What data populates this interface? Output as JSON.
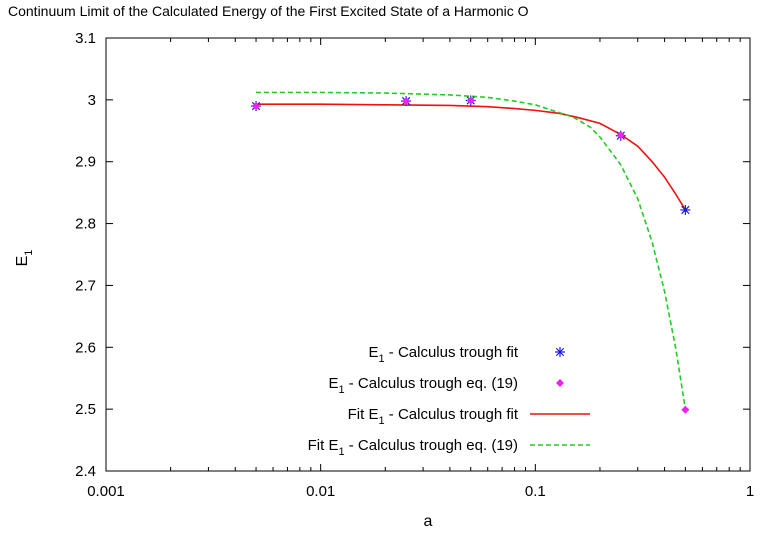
{
  "chart_data": {
    "type": "scatter",
    "title": "Continuum Limit of the Calculated Energy of the First Excited State of a Harmonic O",
    "xlabel": "a",
    "ylabel_main": "E",
    "ylabel_sub": "1",
    "x_scale": "log",
    "xlim": [
      0.001,
      1
    ],
    "ylim": [
      2.4,
      3.1
    ],
    "x_ticks": [
      0.001,
      0.01,
      0.1,
      1
    ],
    "x_tick_labels": [
      "0.001",
      "0.01",
      "0.1",
      "1"
    ],
    "y_ticks": [
      2.4,
      2.5,
      2.6,
      2.7,
      2.8,
      2.9,
      3.0,
      3.1
    ],
    "y_tick_labels": [
      "2.4",
      "2.5",
      "2.6",
      "2.7",
      "2.8",
      "2.9",
      "3",
      "3.1"
    ],
    "grid": false,
    "legend_position": "bottom-center",
    "series": [
      {
        "kind": "points",
        "marker": "asterisk",
        "color": "#1a1ae6",
        "label_prefix": "E",
        "label_sub": "1",
        "label_suffix": " - Calculus trough fit",
        "x": [
          0.005,
          0.025,
          0.05,
          0.25,
          0.5
        ],
        "y": [
          2.99,
          2.998,
          2.999,
          2.942,
          2.822
        ]
      },
      {
        "kind": "points",
        "marker": "diamond",
        "color": "#ee22ee",
        "label_prefix": "E",
        "label_sub": "1",
        "label_suffix": " - Calculus trough eq. (19)",
        "x": [
          0.005,
          0.025,
          0.05,
          0.25,
          0.5
        ],
        "y": [
          2.99,
          2.998,
          2.999,
          2.943,
          2.499
        ]
      },
      {
        "kind": "curve",
        "dash": "solid",
        "color": "#ee1111",
        "label_prefix": "Fit E",
        "label_sub": "1",
        "label_suffix": " - Calculus trough fit",
        "x": [
          0.005,
          0.01,
          0.02,
          0.04,
          0.06,
          0.08,
          0.1,
          0.13,
          0.16,
          0.2,
          0.25,
          0.3,
          0.35,
          0.4,
          0.45,
          0.5
        ],
        "y": [
          2.993,
          2.993,
          2.992,
          2.991,
          2.989,
          2.986,
          2.983,
          2.978,
          2.971,
          2.962,
          2.944,
          2.925,
          2.9,
          2.875,
          2.848,
          2.822
        ]
      },
      {
        "kind": "curve",
        "dash": "dashed",
        "color": "#22cc22",
        "label_prefix": "Fit E",
        "label_sub": "1",
        "label_suffix": " - Calculus trough eq. (19)",
        "x": [
          0.005,
          0.01,
          0.02,
          0.04,
          0.06,
          0.08,
          0.1,
          0.12,
          0.15,
          0.18,
          0.2,
          0.25,
          0.3,
          0.35,
          0.4,
          0.45,
          0.5
        ],
        "y": [
          3.012,
          3.012,
          3.011,
          3.008,
          3.004,
          2.998,
          2.992,
          2.983,
          2.972,
          2.956,
          2.94,
          2.895,
          2.84,
          2.77,
          2.69,
          2.6,
          2.5
        ]
      }
    ]
  }
}
